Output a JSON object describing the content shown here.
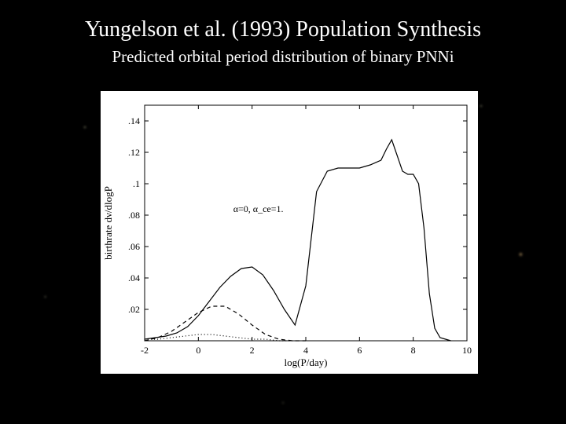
{
  "title": "Yungelson et al. (1993) Population Synthesis",
  "subtitle": "Predicted orbital period distribution of binary PNNi",
  "chart": {
    "type": "line",
    "background_color": "#ffffff",
    "line_color": "#000000",
    "axis_color": "#000000",
    "xlabel": "log(P/day)",
    "ylabel": "birthrate dν/dlogP",
    "label_fontsize": 13,
    "tick_fontsize": 12,
    "xlim": [
      -2,
      10
    ],
    "ylim": [
      0,
      0.15
    ],
    "xticks": [
      -2,
      0,
      2,
      4,
      6,
      8,
      10
    ],
    "yticks": [
      0,
      0.02,
      0.04,
      0.06,
      0.08,
      0.1,
      0.12,
      0.14
    ],
    "ytick_labels": [
      "",
      ".02",
      ".04",
      ".06",
      ".08",
      ".1",
      ".12",
      ".14"
    ],
    "param_text": "α=0, α_ce=1.",
    "series": [
      {
        "name": "main",
        "dash": "none",
        "line_width": 1.2,
        "x": [
          -2.0,
          -1.6,
          -1.2,
          -0.8,
          -0.4,
          0.0,
          0.4,
          0.8,
          1.2,
          1.6,
          2.0,
          2.4,
          2.8,
          3.2,
          3.6,
          4.0,
          4.4,
          4.8,
          5.2,
          5.6,
          6.0,
          6.4,
          6.8,
          7.0,
          7.2,
          7.4,
          7.6,
          7.8,
          8.0,
          8.2,
          8.4,
          8.6,
          8.8,
          9.0,
          9.2,
          9.4
        ],
        "y": [
          0.001,
          0.002,
          0.003,
          0.005,
          0.009,
          0.016,
          0.025,
          0.034,
          0.041,
          0.046,
          0.047,
          0.042,
          0.032,
          0.02,
          0.01,
          0.035,
          0.095,
          0.108,
          0.11,
          0.11,
          0.11,
          0.112,
          0.115,
          0.122,
          0.128,
          0.118,
          0.108,
          0.106,
          0.106,
          0.1,
          0.072,
          0.03,
          0.008,
          0.002,
          0.001,
          0.0
        ]
      },
      {
        "name": "dashed",
        "dash": "5,4",
        "line_width": 1.0,
        "x": [
          -2.0,
          -1.5,
          -1.0,
          -0.5,
          0.0,
          0.5,
          1.0,
          1.5,
          2.0,
          2.5,
          3.0,
          3.5,
          4.0
        ],
        "y": [
          0.0,
          0.002,
          0.006,
          0.012,
          0.018,
          0.022,
          0.022,
          0.017,
          0.01,
          0.004,
          0.001,
          0.0,
          0.0
        ]
      },
      {
        "name": "dotted",
        "dash": "1,3",
        "line_width": 1.0,
        "x": [
          -2.0,
          -1.5,
          -1.0,
          -0.5,
          0.0,
          0.5,
          1.0,
          1.5,
          2.0,
          2.5,
          3.0,
          3.5
        ],
        "y": [
          0.001,
          0.001,
          0.002,
          0.003,
          0.004,
          0.004,
          0.003,
          0.002,
          0.001,
          0.001,
          0.0,
          0.0
        ]
      }
    ]
  }
}
